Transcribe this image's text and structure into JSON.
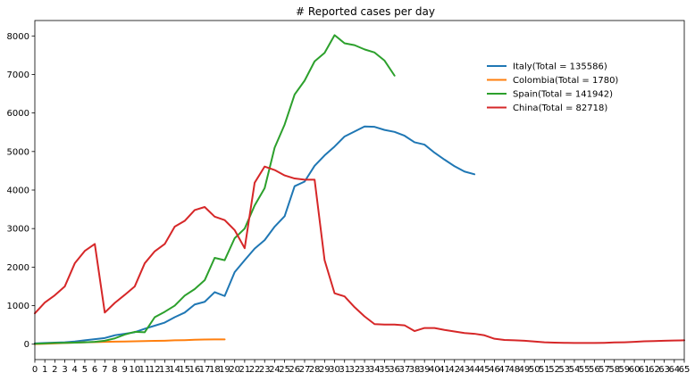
{
  "chart_data": {
    "type": "line",
    "title": "# Reported cases per day",
    "xlabel": "",
    "ylabel": "",
    "xlim": [
      0,
      65
    ],
    "ylim": [
      -400,
      8400
    ],
    "x_ticks": [
      0,
      1,
      2,
      3,
      4,
      5,
      6,
      7,
      8,
      9,
      10,
      11,
      12,
      13,
      14,
      15,
      16,
      17,
      18,
      19,
      20,
      21,
      22,
      23,
      24,
      25,
      26,
      27,
      28,
      29,
      30,
      31,
      32,
      33,
      34,
      35,
      36,
      37,
      38,
      39,
      40,
      41,
      42,
      43,
      44,
      45,
      46,
      47,
      48,
      49,
      50,
      51,
      52,
      53,
      54,
      55,
      56,
      57,
      58,
      59,
      60,
      61,
      62,
      63,
      64,
      65
    ],
    "y_ticks": [
      0,
      1000,
      2000,
      3000,
      4000,
      5000,
      6000,
      7000,
      8000
    ],
    "grid": false,
    "legend_position": "upper-right",
    "series": [
      {
        "name": "Italy(Total  = 135586)",
        "color": "#1f77b4",
        "x": [
          0,
          1,
          2,
          3,
          4,
          5,
          6,
          7,
          8,
          9,
          10,
          11,
          12,
          13,
          14,
          15,
          16,
          17,
          18,
          19,
          20,
          21,
          22,
          23,
          24,
          25,
          26,
          27,
          28,
          29,
          30,
          31,
          32,
          33,
          34,
          35,
          36,
          37,
          38,
          39,
          40,
          41,
          42,
          43,
          44
        ],
        "values": [
          20,
          30,
          40,
          50,
          70,
          100,
          130,
          160,
          230,
          270,
          310,
          400,
          480,
          560,
          700,
          820,
          1030,
          1100,
          1350,
          1250,
          1870,
          2180,
          2480,
          2700,
          3050,
          3320,
          4100,
          4220,
          4630,
          4900,
          5130,
          5390,
          5520,
          5650,
          5640,
          5560,
          5510,
          5410,
          5240,
          5180,
          4970,
          4790,
          4620,
          4480,
          4410
        ]
      },
      {
        "name": "Colombia(Total  = 1780)",
        "color": "#ff7f0e",
        "x": [
          0,
          1,
          2,
          3,
          4,
          5,
          6,
          7,
          8,
          9,
          10,
          11,
          12,
          13,
          14,
          15,
          16,
          17,
          18,
          19
        ],
        "values": [
          2,
          10,
          20,
          30,
          40,
          50,
          55,
          60,
          65,
          70,
          75,
          80,
          85,
          90,
          100,
          105,
          115,
          120,
          125,
          125
        ]
      },
      {
        "name": "Spain(Total  = 141942)",
        "color": "#2ca02c",
        "x": [
          0,
          1,
          2,
          3,
          4,
          5,
          6,
          7,
          8,
          9,
          10,
          11,
          12,
          13,
          14,
          15,
          16,
          17,
          18,
          19,
          20,
          21,
          22,
          23,
          24,
          25,
          26,
          27,
          28,
          29,
          30,
          31,
          32,
          33,
          34,
          35,
          36
        ],
        "values": [
          10,
          20,
          30,
          35,
          40,
          50,
          60,
          90,
          150,
          250,
          320,
          310,
          700,
          840,
          1000,
          1260,
          1430,
          1660,
          2240,
          2180,
          2750,
          3000,
          3600,
          4050,
          5100,
          5700,
          6480,
          6840,
          7340,
          7560,
          8020,
          7810,
          7760,
          7650,
          7570,
          7360,
          6970
        ]
      },
      {
        "name": "China(Total  = 82718)",
        "color": "#d62728",
        "x": [
          0,
          1,
          2,
          3,
          4,
          5,
          6,
          7,
          8,
          9,
          10,
          11,
          12,
          13,
          14,
          15,
          16,
          17,
          18,
          19,
          20,
          21,
          22,
          23,
          24,
          25,
          26,
          27,
          28,
          29,
          30,
          31,
          32,
          33,
          34,
          35,
          36,
          37,
          38,
          39,
          40,
          41,
          42,
          43,
          44,
          45,
          46,
          47,
          48,
          49,
          50,
          51,
          52,
          53,
          54,
          55,
          56,
          57,
          58,
          59,
          60,
          61,
          62,
          63,
          64,
          65
        ],
        "values": [
          800,
          1080,
          1270,
          1500,
          2100,
          2420,
          2600,
          820,
          1070,
          1280,
          1500,
          2100,
          2410,
          2600,
          3050,
          3200,
          3480,
          3560,
          3310,
          3220,
          2960,
          2490,
          4190,
          4610,
          4520,
          4380,
          4300,
          4270,
          4270,
          2180,
          1320,
          1240,
          960,
          720,
          520,
          510,
          510,
          490,
          340,
          420,
          420,
          370,
          330,
          290,
          270,
          230,
          140,
          110,
          100,
          90,
          70,
          50,
          40,
          35,
          30,
          30,
          30,
          35,
          45,
          50,
          60,
          75,
          80,
          90,
          95,
          100
        ]
      }
    ]
  }
}
